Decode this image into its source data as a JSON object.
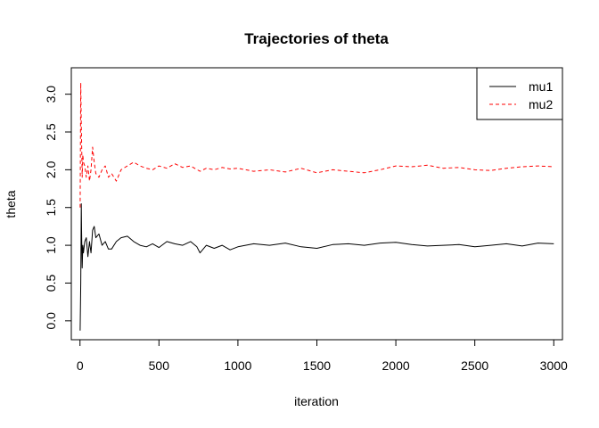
{
  "chart_data": {
    "type": "line",
    "title": "Trajectories of theta",
    "xlabel": "iteration",
    "ylabel": "theta",
    "xlim": [
      -55,
      3055
    ],
    "ylim": [
      -0.25,
      3.35
    ],
    "xticks": [
      0,
      500,
      1000,
      1500,
      2000,
      2500,
      3000
    ],
    "xtick_labels": [
      "0",
      "500",
      "1000",
      "1500",
      "2000",
      "2500",
      "3000"
    ],
    "yticks": [
      0,
      0.5,
      1,
      1.5,
      2,
      2.5,
      3
    ],
    "ytick_labels": [
      "0.0",
      "0.5",
      "1.0",
      "1.5",
      "2.0",
      "2.5",
      "3.0"
    ],
    "grid": false,
    "legend": {
      "position": "top-right"
    },
    "series": [
      {
        "name": "mu1",
        "color": "#000000",
        "dash": "solid",
        "x": [
          1,
          5,
          8,
          10,
          14,
          18,
          22,
          30,
          40,
          50,
          60,
          70,
          80,
          90,
          100,
          120,
          140,
          160,
          180,
          200,
          230,
          260,
          300,
          340,
          380,
          420,
          460,
          500,
          550,
          600,
          650,
          700,
          740,
          760,
          800,
          850,
          900,
          950,
          1000,
          1100,
          1200,
          1300,
          1400,
          1500,
          1600,
          1700,
          1800,
          1900,
          2000,
          2100,
          2200,
          2300,
          2400,
          2500,
          2600,
          2700,
          2800,
          2900,
          3000
        ],
        "y": [
          -0.13,
          0.5,
          1.55,
          1.2,
          0.7,
          1.0,
          0.9,
          1.05,
          1.1,
          0.85,
          1.05,
          0.9,
          1.2,
          1.25,
          1.1,
          1.15,
          1.0,
          1.05,
          0.95,
          0.95,
          1.05,
          1.1,
          1.12,
          1.05,
          1.0,
          0.98,
          1.02,
          0.97,
          1.05,
          1.02,
          1.0,
          1.05,
          0.98,
          0.9,
          1.0,
          0.96,
          1.0,
          0.94,
          0.98,
          1.02,
          1.0,
          1.03,
          0.98,
          0.96,
          1.01,
          1.02,
          1.0,
          1.03,
          1.04,
          1.01,
          0.99,
          1.0,
          1.01,
          0.98,
          1.0,
          1.02,
          0.99,
          1.03,
          1.02
        ]
      },
      {
        "name": "mu2",
        "color": "#ff0000",
        "dash": "dashed",
        "x": [
          1,
          5,
          8,
          10,
          14,
          18,
          22,
          30,
          40,
          50,
          60,
          70,
          80,
          90,
          100,
          120,
          140,
          160,
          180,
          200,
          230,
          260,
          300,
          340,
          380,
          420,
          460,
          500,
          550,
          600,
          650,
          700,
          760,
          800,
          850,
          900,
          950,
          1000,
          1100,
          1200,
          1300,
          1400,
          1500,
          1600,
          1700,
          1800,
          1900,
          2000,
          2100,
          2200,
          2300,
          2400,
          2500,
          2600,
          2700,
          2800,
          2900,
          3000
        ],
        "y": [
          1.5,
          3.15,
          2.6,
          2.4,
          1.9,
          2.2,
          2.1,
          2.05,
          1.9,
          2.05,
          1.85,
          2.0,
          2.3,
          2.1,
          1.95,
          1.9,
          2.0,
          2.05,
          1.9,
          1.95,
          1.85,
          2.0,
          2.05,
          2.1,
          2.05,
          2.02,
          2.0,
          2.05,
          2.02,
          2.08,
          2.03,
          2.05,
          1.98,
          2.02,
          2.0,
          2.03,
          2.01,
          2.02,
          1.98,
          2.0,
          1.97,
          2.02,
          1.96,
          2.0,
          1.98,
          1.96,
          2.0,
          2.05,
          2.04,
          2.06,
          2.02,
          2.03,
          2.0,
          1.99,
          2.02,
          2.04,
          2.05,
          2.04
        ]
      }
    ]
  }
}
